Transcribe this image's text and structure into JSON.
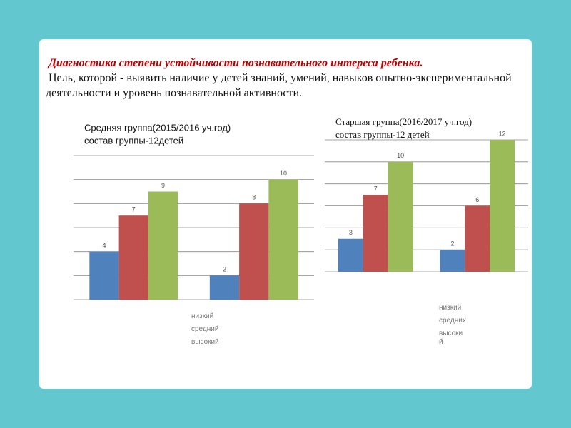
{
  "heading": "Диагностика степени устойчивости познавательного интереса ребенка.",
  "description": "Цель, которой - выявить наличие у детей знаний, умений, навыков опытно-экспериментальной деятельности и уровень познавательной активности.",
  "chart_data": [
    {
      "type": "bar",
      "title": "Средняя группа(2015/2016 уч.год)",
      "subtitle": "состав группы-12детей",
      "categories": [
        null,
        null
      ],
      "series": [
        {
          "name": "низкий",
          "color": "#4f81bd",
          "values": [
            4,
            2
          ]
        },
        {
          "name": "средний",
          "color": "#c0504d",
          "values": [
            7,
            8
          ]
        },
        {
          "name": "высокий",
          "color": "#9bbb59",
          "values": [
            9,
            10
          ]
        }
      ],
      "ylim": [
        0,
        12
      ],
      "yticks": [
        0,
        2,
        4,
        6,
        8,
        10,
        12
      ],
      "grid": true
    },
    {
      "type": "bar",
      "title": "Старшая группа(2016/2017 уч.год)",
      "subtitle": "состав группы-12 детей",
      "categories": [
        null,
        null
      ],
      "series": [
        {
          "name": "низкий",
          "color": "#4f81bd",
          "values": [
            3,
            2
          ]
        },
        {
          "name": "средних",
          "color": "#c0504d",
          "values": [
            7,
            6
          ]
        },
        {
          "name": "высокий",
          "color": "#9bbb59",
          "values": [
            10,
            12
          ]
        }
      ],
      "ylim": [
        0,
        12
      ],
      "yticks": [
        0,
        2,
        4,
        6,
        8,
        10,
        12
      ],
      "grid": true
    }
  ]
}
